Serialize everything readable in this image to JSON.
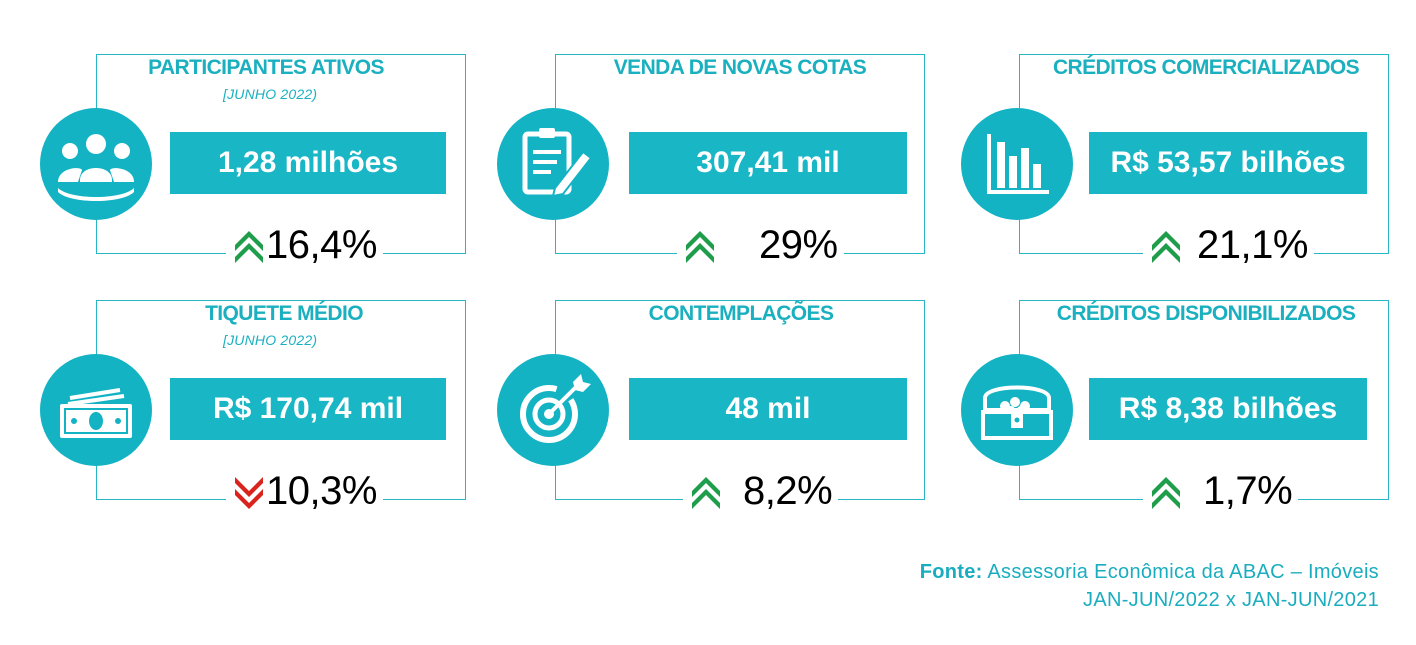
{
  "colors": {
    "teal": "#13b3c4",
    "up": "#1e9e4a",
    "down": "#d9231d"
  },
  "cards": [
    {
      "title": "PARTICIPANTES ATIVOS",
      "subtitle": "[JUNHO 2022)",
      "value": "1,28 milhões",
      "change": "16,4%",
      "direction": "up",
      "icon": "group-of-people-icon"
    },
    {
      "title": "VENDA DE NOVAS COTAS",
      "value": "307,41 mil",
      "change": "29%",
      "direction": "up",
      "icon": "clipboard-pencil-icon"
    },
    {
      "title": "CRÉDITOS COMERCIALIZADOS",
      "value": "R$ 53,57 bilhões",
      "change": "21,1%",
      "direction": "up",
      "icon": "bar-chart-icon"
    },
    {
      "title": "TIQUETE MÉDIO",
      "subtitle": "[JUNHO 2022)",
      "value": "R$ 170,74 mil",
      "change": "10,3%",
      "direction": "down",
      "icon": "banknotes-icon"
    },
    {
      "title": "CONTEMPLAÇÕES",
      "value": "48 mil",
      "change": "8,2%",
      "direction": "up",
      "icon": "target-arrow-icon"
    },
    {
      "title": "CRÉDITOS DISPONIBILIZADOS",
      "value": "R$ 8,38 bilhões",
      "change": "1,7%",
      "direction": "up",
      "icon": "treasure-chest-icon"
    }
  ],
  "source": {
    "label": "Fonte:",
    "text": "Assessoria Econômica da ABAC – Imóveis",
    "period": "JAN-JUN/2022 x JAN-JUN/2021"
  }
}
